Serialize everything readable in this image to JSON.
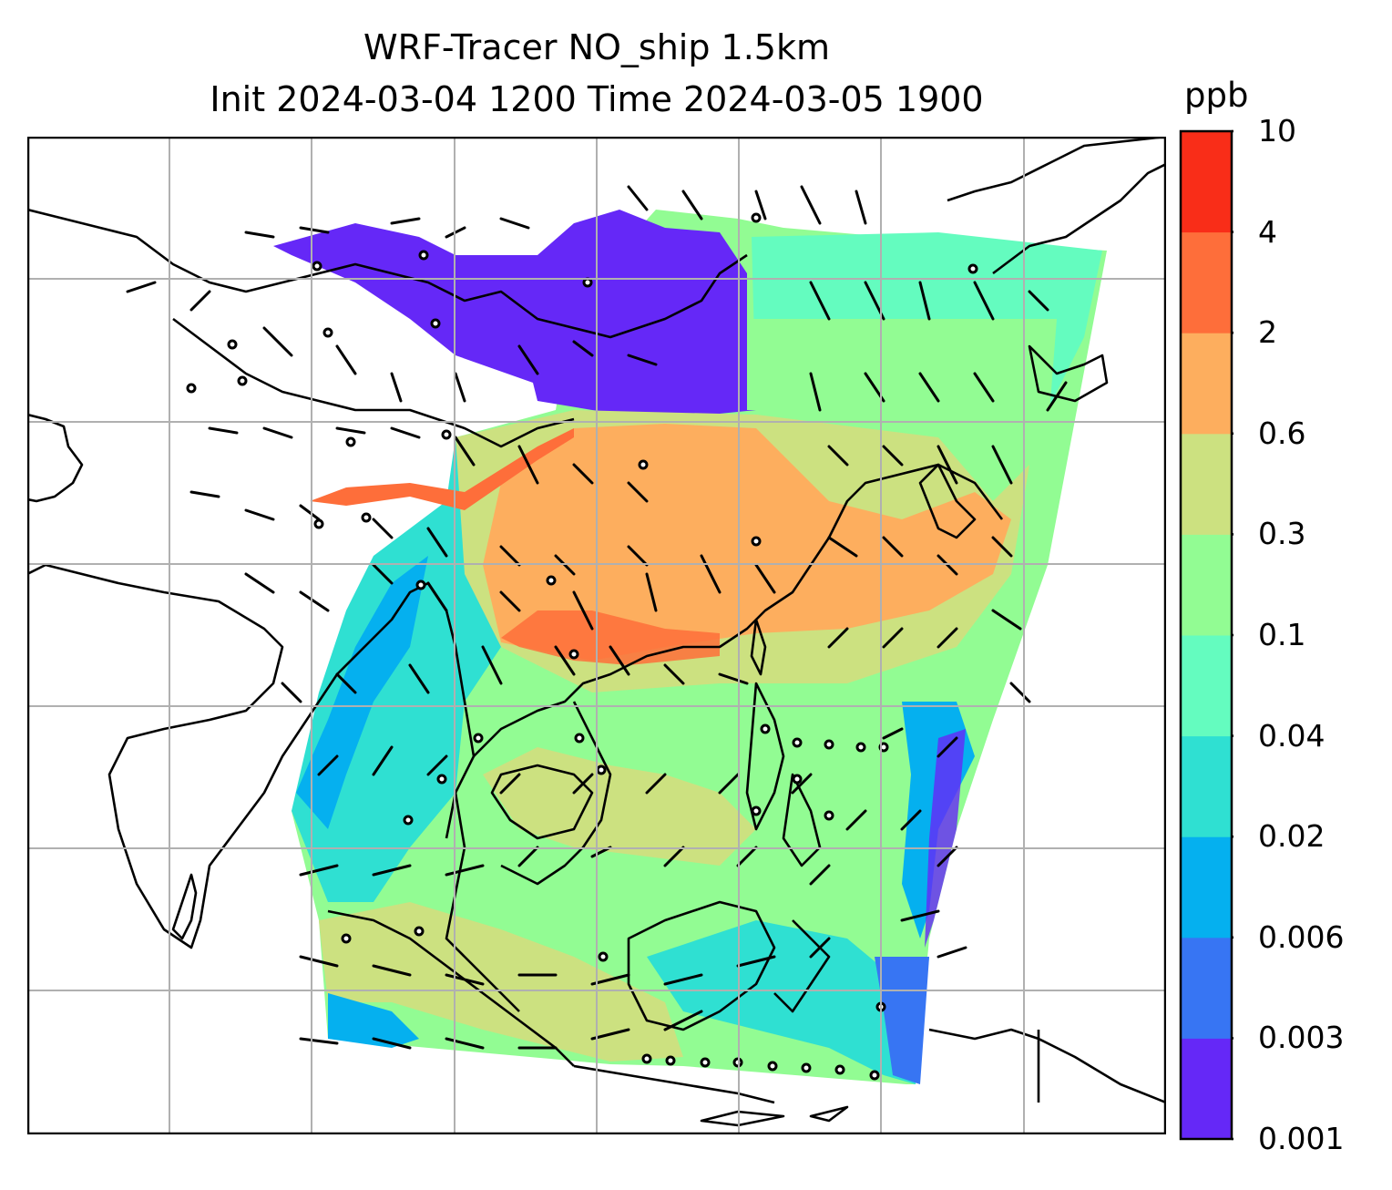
{
  "title_line1": "WRF-Tracer NO_ship 1.5km",
  "title_line2": "Init 2024-03-04 1200 Time 2024-03-05 1900",
  "colorbar": {
    "unit": "ppb",
    "levels": [
      "0.001",
      "0.003",
      "0.006",
      "0.02",
      "0.04",
      "0.1",
      "0.3",
      "0.6",
      "2",
      "4",
      "10"
    ],
    "colors": [
      "#6528f7",
      "#3775f3",
      "#05b0ef",
      "#2fe0d2",
      "#64fcbf",
      "#92fc93",
      "#cce180",
      "#fdae5e",
      "#fe6e3a",
      "#f92d18"
    ]
  },
  "map": {
    "gridlines": true,
    "land_outline_color": "#000000",
    "field_colormap": "rainbow"
  }
}
